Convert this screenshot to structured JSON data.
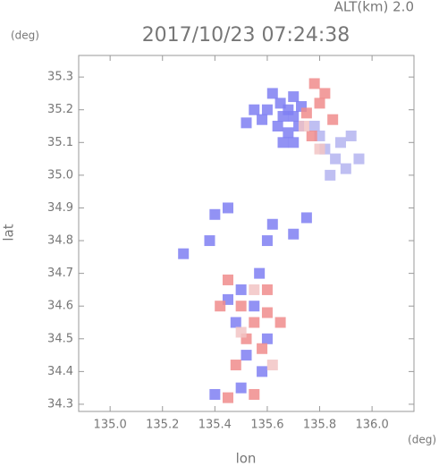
{
  "chart_data": {
    "type": "scatter",
    "title": "2017/10/23 07:24:38",
    "subtitle": "ALT(km)  2.0",
    "x_label": "lon",
    "y_label": "lat",
    "x_unit": "(deg)",
    "y_unit": "(deg)",
    "xlim": [
      134.88,
      136.16
    ],
    "ylim": [
      34.278,
      35.366
    ],
    "xticks": [
      {
        "value": 135.0,
        "label": "135.0"
      },
      {
        "value": 135.2,
        "label": "135.2"
      },
      {
        "value": 135.4,
        "label": "135.4"
      },
      {
        "value": 135.6,
        "label": "135.6"
      },
      {
        "value": 135.8,
        "label": "135.8"
      },
      {
        "value": 136.0,
        "label": "136.0"
      }
    ],
    "yticks": [
      34.3,
      34.4,
      34.5,
      34.6,
      34.7,
      34.8,
      34.9,
      {
        "value": 35.0,
        "label": "35.0"
      },
      35.1,
      35.2,
      35.3
    ],
    "series": [
      {
        "color": "#7f7ff2",
        "x": [
          135.62,
          135.65,
          135.68,
          135.7,
          135.64,
          135.68,
          135.72,
          135.66,
          135.7,
          135.73,
          135.6,
          135.66,
          135.55,
          135.52,
          135.58,
          135.7,
          135.4,
          135.45,
          135.62,
          135.7,
          135.75,
          135.6,
          135.28,
          135.38,
          135.5,
          135.55,
          135.48,
          135.6,
          135.52,
          135.57,
          135.45,
          135.58,
          135.5,
          135.4
        ],
        "values": [
          35.25,
          35.22,
          35.2,
          35.18,
          35.15,
          35.13,
          35.15,
          35.18,
          35.24,
          35.21,
          35.2,
          35.1,
          35.2,
          35.16,
          35.17,
          35.1,
          34.88,
          34.9,
          34.85,
          34.82,
          34.87,
          34.8,
          34.76,
          34.8,
          34.65,
          34.6,
          34.55,
          34.5,
          34.45,
          34.7,
          34.62,
          34.4,
          34.35,
          34.33
        ]
      },
      {
        "color": "#b4b4f0",
        "x": [
          135.82,
          135.86,
          135.9,
          135.88,
          135.92,
          135.84,
          135.95,
          135.78,
          135.8
        ],
        "values": [
          35.08,
          35.05,
          35.02,
          35.1,
          35.12,
          35.0,
          35.05,
          35.15,
          35.12
        ]
      },
      {
        "color": "#f08c8c",
        "x": [
          135.78,
          135.8,
          135.75,
          135.82,
          135.77,
          135.85,
          135.45,
          135.5,
          135.55,
          135.52,
          135.58,
          135.48,
          135.6,
          135.42,
          135.55,
          135.45,
          135.65,
          135.6
        ],
        "values": [
          35.28,
          35.22,
          35.19,
          35.25,
          35.12,
          35.17,
          34.68,
          34.6,
          34.55,
          34.5,
          34.47,
          34.42,
          34.58,
          34.6,
          34.33,
          34.32,
          34.55,
          34.65
        ]
      },
      {
        "color": "#f2c4c4",
        "x": [
          135.74,
          135.8,
          135.5,
          135.55,
          135.62
        ],
        "values": [
          35.15,
          35.08,
          34.52,
          34.65,
          34.42
        ]
      }
    ]
  }
}
